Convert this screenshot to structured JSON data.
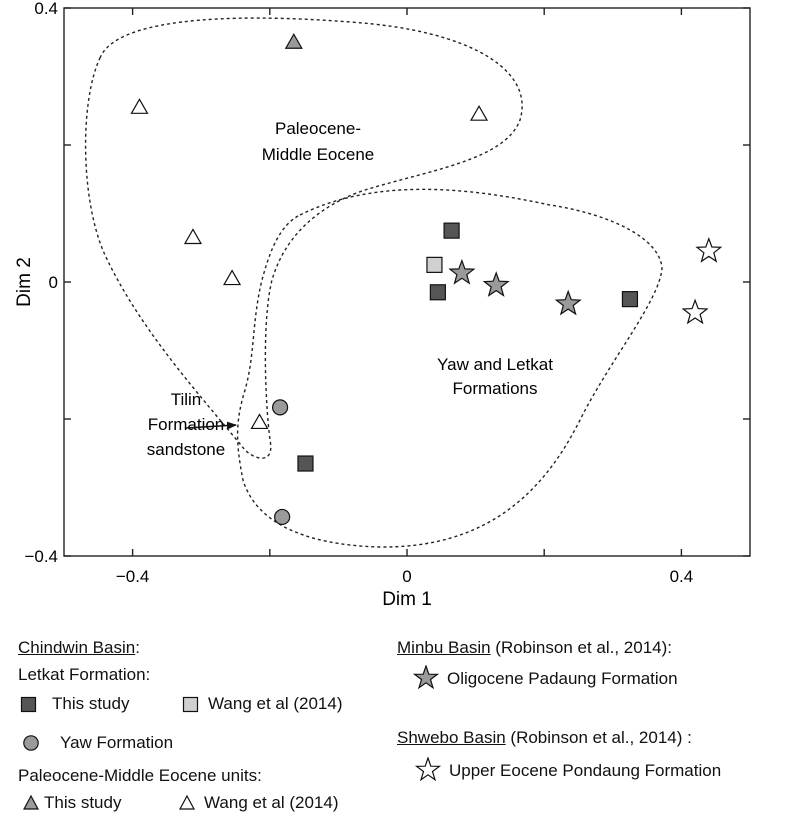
{
  "chart_data": {
    "type": "scatter",
    "xlabel": "Dim 1",
    "ylabel": "Dim 2",
    "xlim": [
      -0.5,
      0.5
    ],
    "ylim": [
      -0.4,
      0.4
    ],
    "xticks": [
      -0.4,
      0,
      0.4
    ],
    "xtick_labels": [
      "−0.4",
      "0",
      "0.4"
    ],
    "yticks": [
      -0.4,
      0,
      0.4
    ],
    "ytick_labels": [
      "−0.4",
      "0",
      "0.4"
    ],
    "series": [
      {
        "key": "letkat_this",
        "marker": "square",
        "fill": "#555555",
        "points": [
          [
            0.065,
            0.075
          ],
          [
            0.045,
            -0.015
          ],
          [
            0.325,
            -0.025
          ],
          [
            -0.148,
            -0.265
          ]
        ]
      },
      {
        "key": "letkat_wang",
        "marker": "square",
        "fill": "#d0d0d0",
        "points": [
          [
            0.04,
            0.025
          ]
        ]
      },
      {
        "key": "yaw",
        "marker": "circle",
        "fill": "#9a9a9a",
        "points": [
          [
            -0.185,
            -0.183
          ],
          [
            -0.182,
            -0.343
          ]
        ]
      },
      {
        "key": "paleo_this",
        "marker": "triangle",
        "fill": "#9a9a9a",
        "points": [
          [
            -0.165,
            0.35
          ]
        ]
      },
      {
        "key": "paleo_wang",
        "marker": "triangle",
        "fill": "#ffffff",
        "points": [
          [
            -0.39,
            0.255
          ],
          [
            0.105,
            0.245
          ],
          [
            -0.312,
            0.065
          ],
          [
            -0.255,
            0.005
          ],
          [
            -0.215,
            -0.205
          ]
        ]
      },
      {
        "key": "minbu",
        "marker": "star",
        "fill": "#9a9a9a",
        "points": [
          [
            0.08,
            0.013
          ],
          [
            0.13,
            -0.005
          ],
          [
            0.235,
            -0.032
          ]
        ]
      },
      {
        "key": "shwebo",
        "marker": "star",
        "fill": "#ffffff",
        "points": [
          [
            0.44,
            0.045
          ],
          [
            0.42,
            -0.045
          ]
        ]
      }
    ],
    "annotations": [
      {
        "key": "paleo_region",
        "lines": [
          "Paleocene-",
          "Middle Eocene"
        ]
      },
      {
        "key": "yaw_region",
        "lines": [
          "Yaw and Letkat",
          "Formations"
        ]
      },
      {
        "key": "tilin",
        "lines": [
          "Tilin",
          "Formation",
          "sandstone"
        ]
      }
    ]
  },
  "legend": {
    "chindwin_title": "Chindwin Basin",
    "chindwin_colon": ":",
    "letkat_formation": "Letkat Formation:",
    "letkat_this_study": "This study",
    "letkat_wang": "Wang et al (2014)",
    "yaw_formation": "Yaw Formation",
    "paleo_units": "Paleocene-Middle Eocene units:",
    "paleo_this_study": "This study",
    "paleo_wang": "Wang et al (2014)",
    "minbu_title": "Minbu Basin",
    "minbu_ref": " (Robinson et al., 2014):",
    "minbu_formation": "Oligocene Padaung Formation",
    "shwebo_title": "Shwebo Basin",
    "shwebo_ref": " (Robinson et al., 2014) :",
    "shwebo_formation": "Upper Eocene Pondaung Formation"
  }
}
